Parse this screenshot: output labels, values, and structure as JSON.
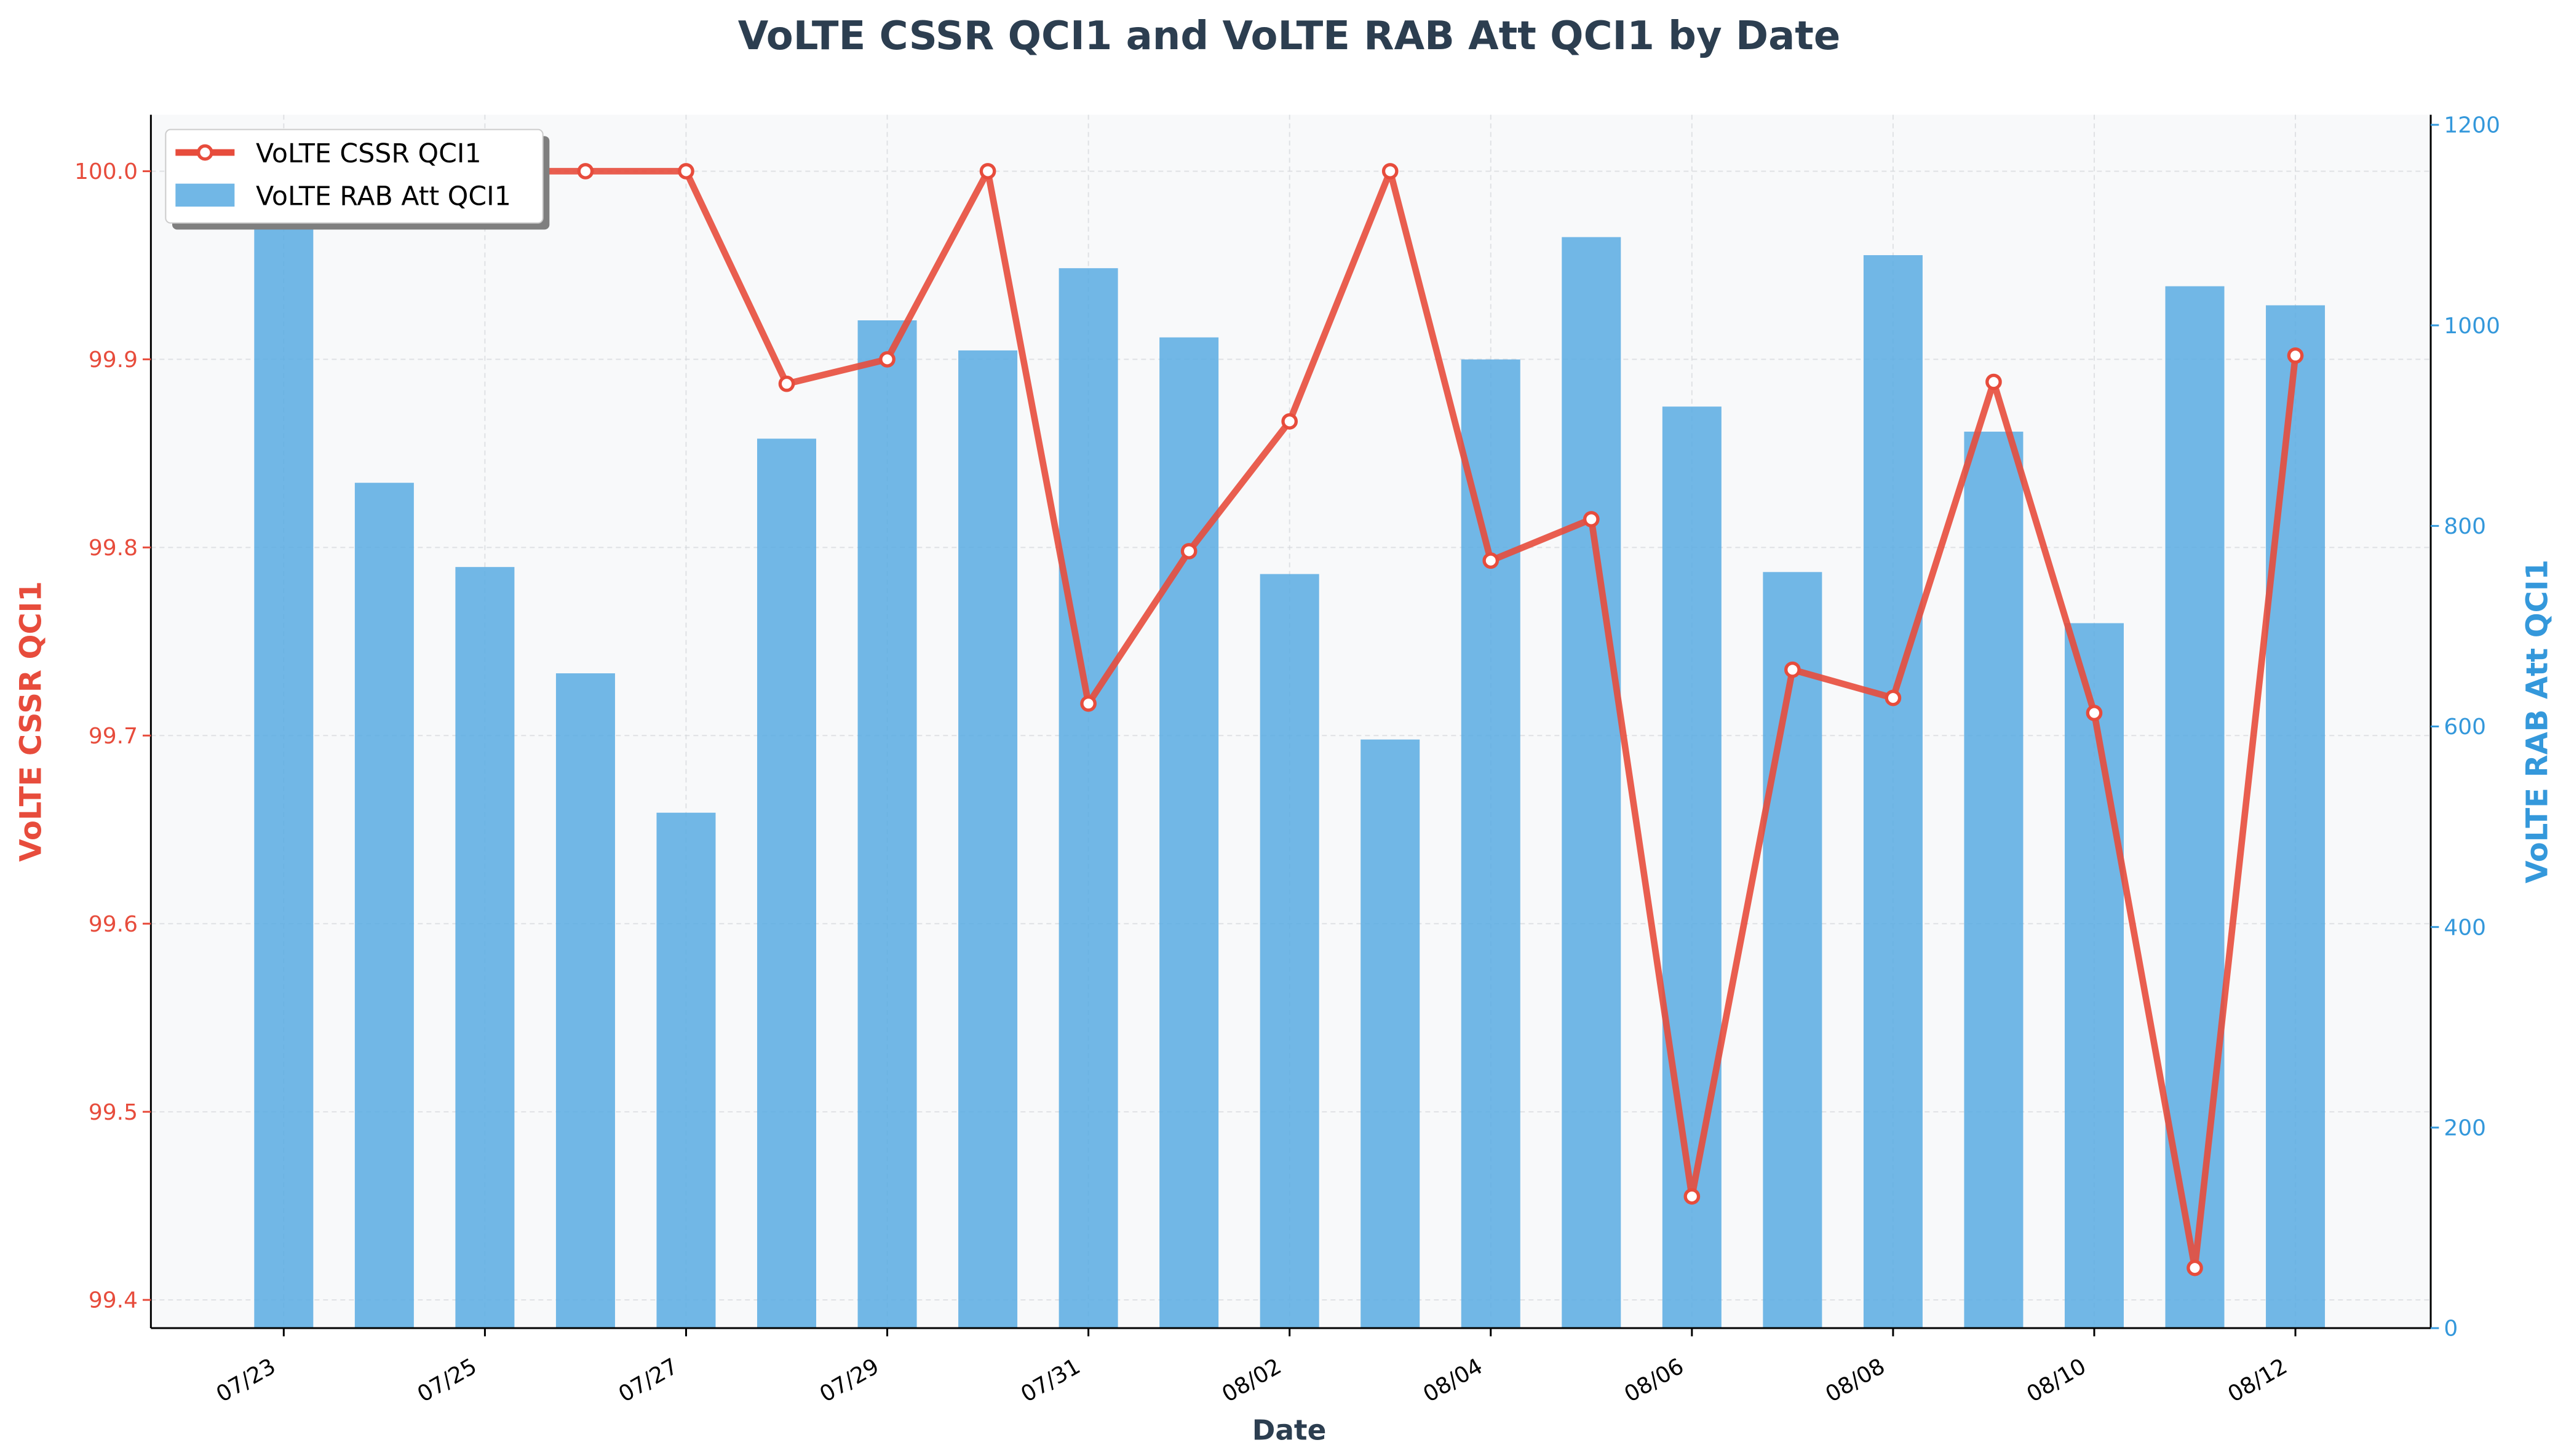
{
  "chart_data": {
    "type": "bar+line",
    "title": "VoLTE CSSR QCI1 and VoLTE RAB Att QCI1 by Date",
    "xlabel": "Date",
    "ylabel_left": "VoLTE CSSR QCI1",
    "ylabel_right": "VoLTE RAB Att QCI1",
    "categories": [
      "07/23",
      "07/24",
      "07/25",
      "07/26",
      "07/27",
      "07/28",
      "07/29",
      "07/30",
      "07/31",
      "08/01",
      "08/02",
      "08/03",
      "08/04",
      "08/05",
      "08/06",
      "08/07",
      "08/08",
      "08/09",
      "08/10",
      "08/11",
      "08/12"
    ],
    "x_tick_labels": [
      "07/23",
      "07/25",
      "07/27",
      "07/29",
      "07/31",
      "08/02",
      "08/04",
      "08/06",
      "08/08",
      "08/10",
      "08/12"
    ],
    "ylim_left": [
      99.385,
      100.03
    ],
    "ylim_right": [
      0,
      1210
    ],
    "yticks_left": [
      "99.4",
      "99.5",
      "99.6",
      "99.7",
      "99.8",
      "99.9",
      "100.0"
    ],
    "yticks_right": [
      "0",
      "200",
      "400",
      "600",
      "800",
      "1000",
      "1200"
    ],
    "series": [
      {
        "name": "VoLTE CSSR QCI1",
        "kind": "line",
        "axis": "left",
        "color": "#e74c3c",
        "values": [
          100.0,
          100.0,
          100.0,
          100.0,
          100.0,
          99.887,
          99.9,
          100.0,
          99.717,
          99.798,
          99.867,
          100.0,
          99.793,
          99.815,
          99.455,
          99.735,
          99.72,
          99.888,
          99.712,
          99.417,
          99.902
        ]
      },
      {
        "name": "VoLTE RAB Att QCI1",
        "kind": "bar",
        "axis": "right",
        "color": "#5dade2",
        "values": [
          1152,
          843,
          759,
          653,
          514,
          887,
          1005,
          975,
          1057,
          988,
          752,
          587,
          966,
          1088,
          919,
          754,
          1070,
          894,
          703,
          1039,
          1020
        ]
      }
    ],
    "grid": true,
    "legend_position": "top-left"
  },
  "colors": {
    "left_axis": "#e74c3c",
    "right_axis": "#3498db",
    "title": "#2c3e50",
    "plot_bg": "#f8f9fa"
  }
}
